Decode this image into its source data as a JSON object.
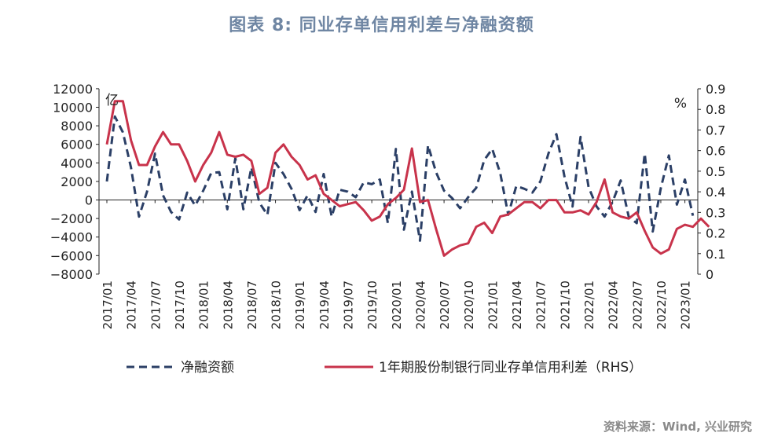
{
  "figure_title": "图表 8:  同业存单信用利差与净融资额",
  "source_note": "资料来源：Wind, 兴业研究",
  "chart_data": {
    "type": "line",
    "left_unit": "亿",
    "right_unit": "%",
    "left_axis": {
      "min": -8000,
      "max": 12000,
      "step": 2000,
      "tick_labels": [
        "12000",
        "10000",
        "8000",
        "6000",
        "4000",
        "2000",
        "0",
        "−2000",
        "−4000",
        "−6000",
        "−8000"
      ]
    },
    "right_axis": {
      "min": 0,
      "max": 0.9,
      "step": 0.1,
      "tick_labels": [
        "0.9",
        "0.8",
        "0.7",
        "0.6",
        "0.5",
        "0.4",
        "0.3",
        "0.2",
        "0.1",
        "0"
      ]
    },
    "x_tick_labels": [
      "2017/01",
      "2017/04",
      "2017/07",
      "2017/10",
      "2018/01",
      "2018/04",
      "2018/07",
      "2018/10",
      "2019/01",
      "2019/04",
      "2019/07",
      "2019/10",
      "2020/01",
      "2020/04",
      "2020/07",
      "2020/10",
      "2021/01",
      "2021/04",
      "2021/07",
      "2021/10",
      "2022/01",
      "2022/04",
      "2022/07",
      "2022/10",
      "2023/01"
    ],
    "grid": false,
    "legend_position": "bottom",
    "series": [
      {
        "name": "净融资额",
        "axis": "left",
        "style": "dashed",
        "color": "#2b3f66",
        "values": [
          2000,
          9000,
          7300,
          3500,
          -1800,
          900,
          5000,
          500,
          -1300,
          -2100,
          800,
          -600,
          1000,
          2900,
          3000,
          -1000,
          4500,
          -1000,
          3500,
          -300,
          -1600,
          4000,
          2800,
          1200,
          -1100,
          500,
          -1300,
          2800,
          -1800,
          1100,
          900,
          300,
          1900,
          1700,
          2200,
          -2500,
          5500,
          -3200,
          900,
          -4400,
          5900,
          3000,
          1000,
          200,
          -900,
          300,
          1300,
          4300,
          5500,
          2900,
          -1600,
          1500,
          1200,
          800,
          2000,
          5000,
          7100,
          2500,
          -700,
          6800,
          1400,
          -700,
          -1800,
          -200,
          2100,
          -1800,
          -2500,
          5000,
          -3400,
          1300,
          4800,
          -500,
          2200,
          -1700
        ]
      },
      {
        "name": "1年期股份制银行同业存单信用利差（RHS）",
        "axis": "right",
        "style": "solid",
        "color": "#c8334b",
        "values": [
          0.63,
          0.84,
          0.84,
          0.65,
          0.53,
          0.53,
          0.62,
          0.69,
          0.63,
          0.63,
          0.55,
          0.45,
          0.53,
          0.59,
          0.69,
          0.58,
          0.57,
          0.58,
          0.55,
          0.39,
          0.42,
          0.59,
          0.63,
          0.57,
          0.53,
          0.46,
          0.48,
          0.39,
          0.36,
          0.33,
          0.34,
          0.35,
          0.31,
          0.26,
          0.28,
          0.34,
          0.37,
          0.41,
          0.61,
          0.35,
          0.36,
          0.22,
          0.09,
          0.12,
          0.14,
          0.15,
          0.23,
          0.25,
          0.2,
          0.28,
          0.29,
          0.32,
          0.35,
          0.35,
          0.32,
          0.36,
          0.36,
          0.3,
          0.3,
          0.31,
          0.29,
          0.35,
          0.46,
          0.3,
          0.28,
          0.27,
          0.3,
          0.21,
          0.13,
          0.1,
          0.12,
          0.22,
          0.24,
          0.23,
          0.27,
          0.23
        ]
      }
    ]
  }
}
